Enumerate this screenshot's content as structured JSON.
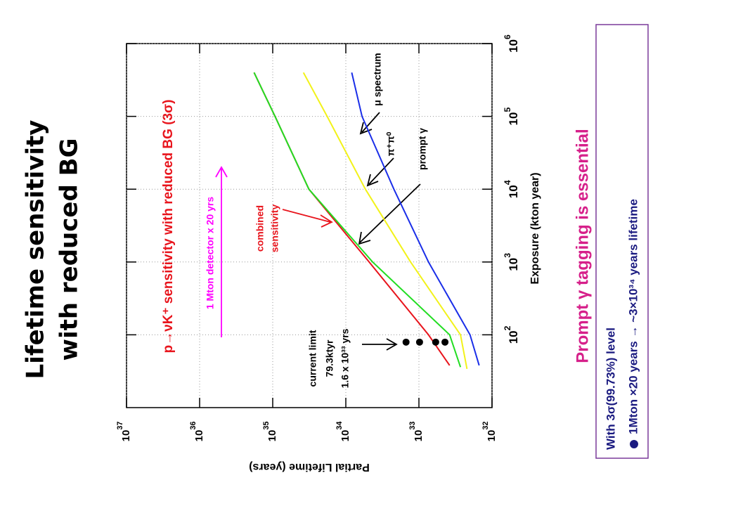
{
  "slide": {
    "title": [
      "Lifetime sensitivity",
      "with reduced BG"
    ],
    "note": "Prompt γ tagging is essential",
    "box": [
      "With 3σ(99.73%) level",
      "1Mton ×20 years → ~3×10³⁴ years lifetime"
    ]
  },
  "chart_data": {
    "type": "line",
    "title": "p→νK⁺ sensitivity with reduced BG (3σ)",
    "x_label": "Exposure (kton year)",
    "y_label": "Partial Lifetime (years)",
    "xlog": true,
    "ylog": true,
    "grid": true,
    "xlim": [
      10,
      1000000
    ],
    "ylim": [
      1e+32,
      1e+37
    ],
    "xticks": [
      {
        "value": 100,
        "label": "10",
        "exponent": "2"
      },
      {
        "value": 1000,
        "label": "10",
        "exponent": "3"
      },
      {
        "value": 10000,
        "label": "10",
        "exponent": "4"
      },
      {
        "value": 100000,
        "label": "10",
        "exponent": "5"
      },
      {
        "value": 1000000,
        "label": "10",
        "exponent": "6"
      }
    ],
    "yticks": [
      {
        "value": 1e+32,
        "label": "10",
        "exponent": "32"
      },
      {
        "value": 1e+33,
        "label": "10",
        "exponent": "33"
      },
      {
        "value": 1e+34,
        "label": "10",
        "exponent": "34"
      },
      {
        "value": 1e+35,
        "label": "10",
        "exponent": "35"
      },
      {
        "value": 1e+36,
        "label": "10",
        "exponent": "36"
      },
      {
        "value": 1e+37,
        "label": "10",
        "exponent": "37"
      }
    ],
    "series": [
      {
        "color": "#e8141c",
        "x": [
          38,
          100,
          1000,
          10000,
          100000,
          400000
        ],
        "values": [
          3.8e+32,
          7.4e+32,
          4.8e+33,
          3.2e+34,
          9.3e+34,
          1.8e+35
        ]
      },
      {
        "color": "#22dd22",
        "x": [
          36,
          100,
          1000,
          10000,
          100000,
          400000
        ],
        "values": [
          2.7e+32,
          3.8e+32,
          4.3e+33,
          3.2e+34,
          9.3e+34,
          1.8e+35
        ]
      },
      {
        "color": "#f2f21a",
        "x": [
          34,
          100,
          1000,
          10000,
          100000,
          400000
        ],
        "values": [
          2.2e+32,
          2.7e+32,
          1.3e+33,
          5.4e+33,
          1.8e+34,
          3.8e+34
        ]
      },
      {
        "color": "#1a2ee8",
        "x": [
          38,
          100,
          1000,
          10000,
          100000,
          400000
        ],
        "values": [
          1.5e+32,
          2e+32,
          7.4e+32,
          2.2e+33,
          6e+33,
          8.3e+33
        ]
      }
    ],
    "points": {
      "color": "#000000",
      "x": [
        79.3,
        79.3,
        79.3,
        79.3
      ],
      "values": [
        1.5e+33,
        9.8e+32,
        5.9e+32,
        4.4e+32
      ]
    },
    "annotations": [
      "combined",
      "sensitivity",
      "prompt γ",
      "π⁺π⁰",
      "μ spectrum",
      "current limit",
      "79.3ktyr",
      "1.6 x 10³³ yrs",
      "1 Mton detector x 20 yrs"
    ]
  }
}
